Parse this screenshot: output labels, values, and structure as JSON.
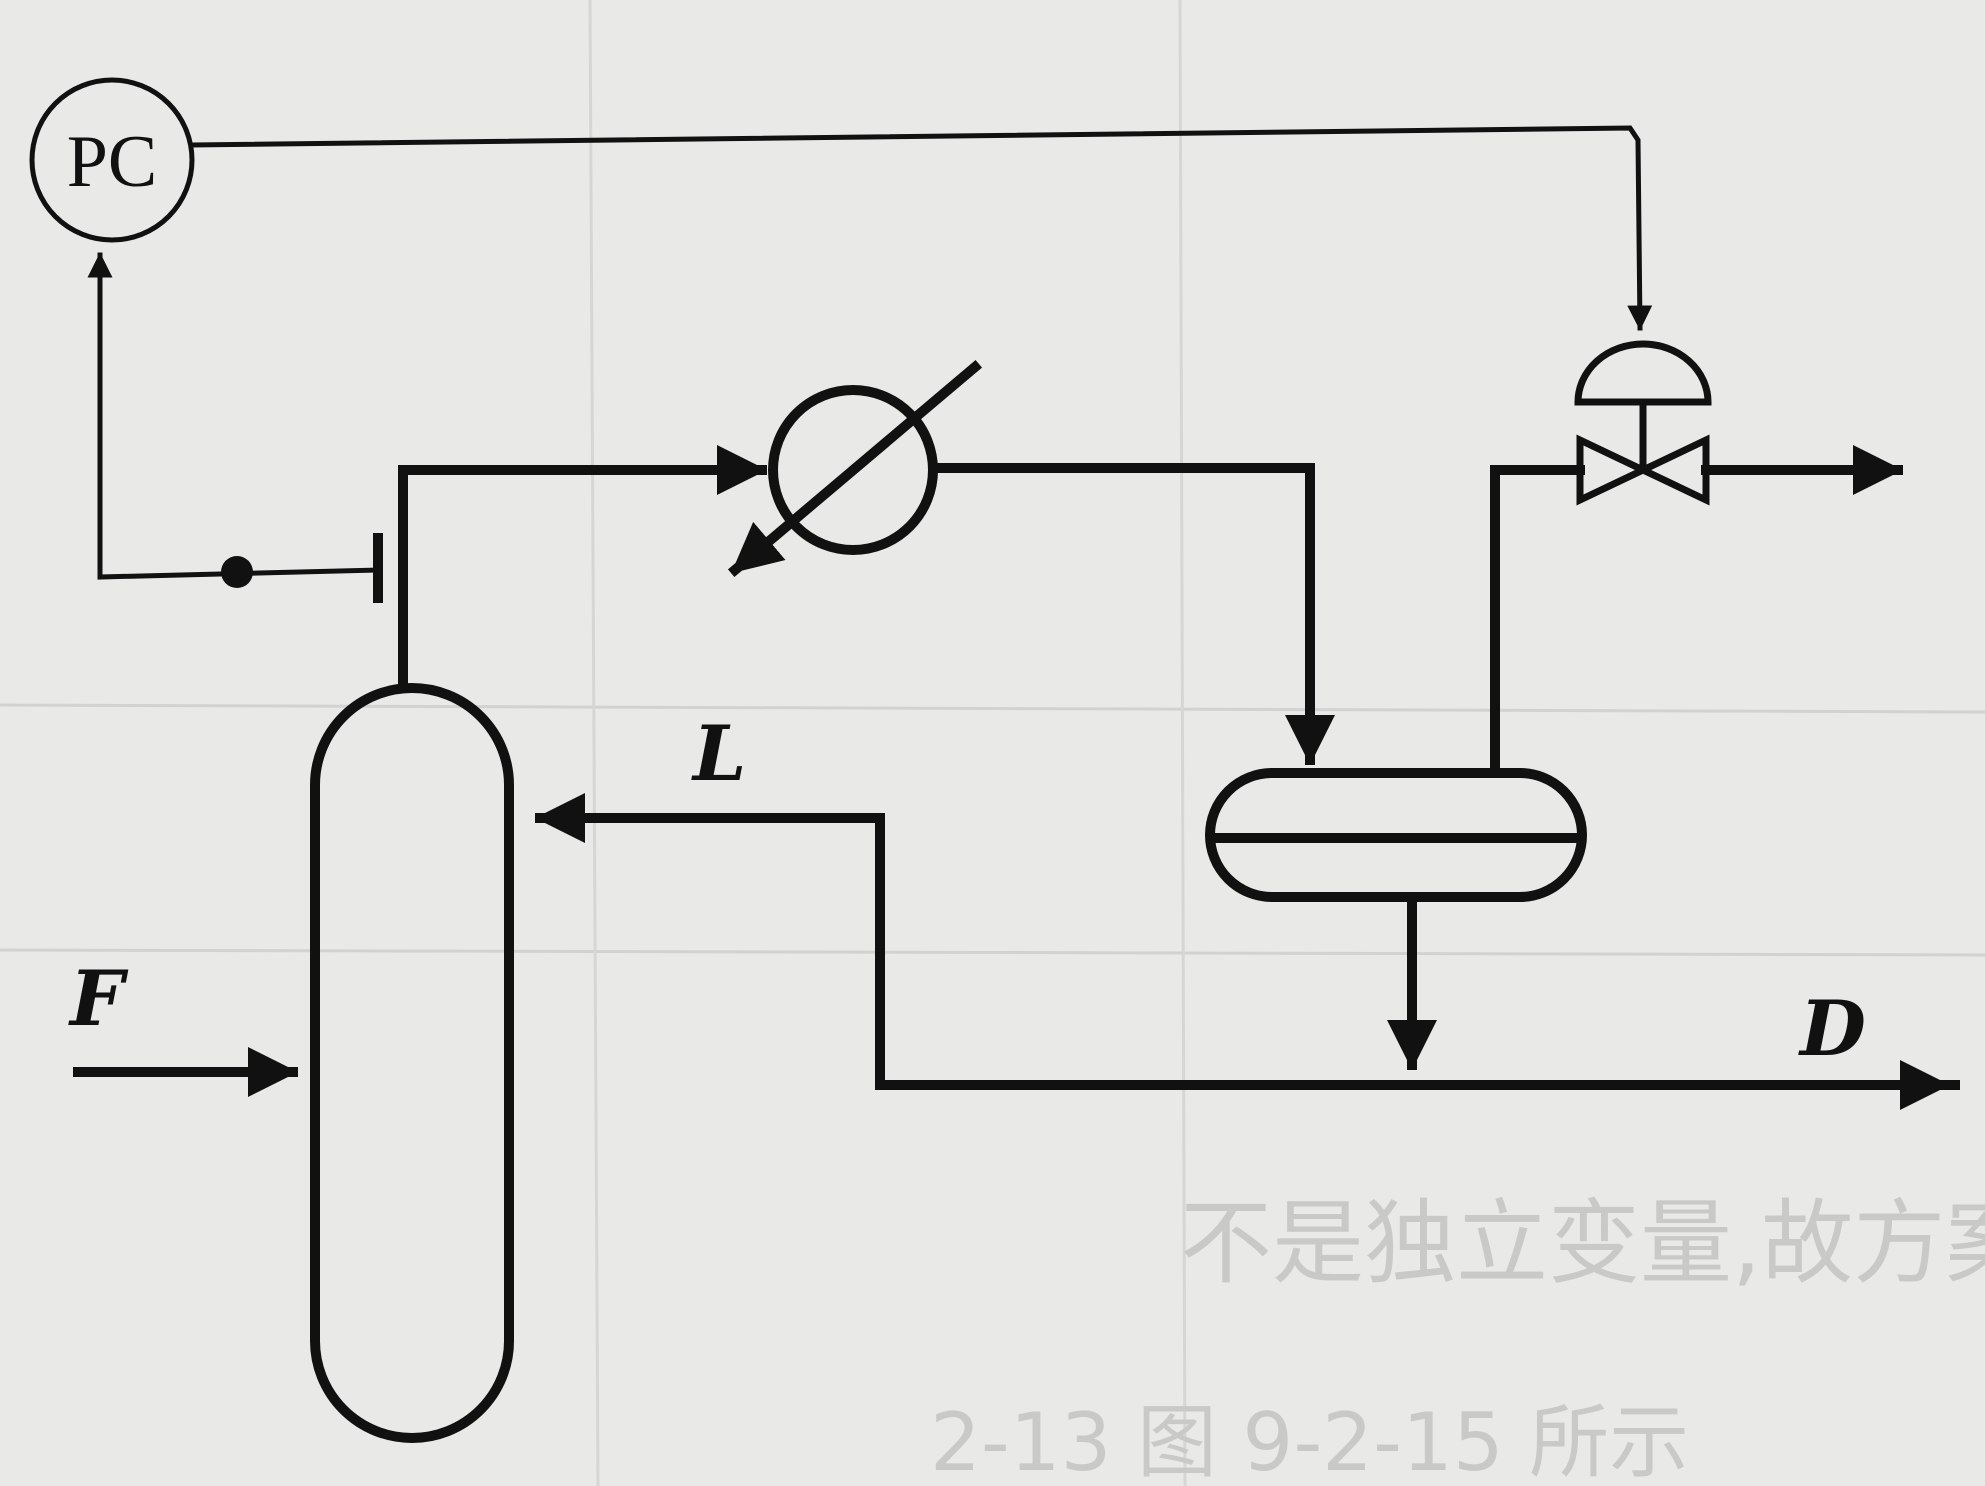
{
  "diagram": {
    "controller": {
      "label": "PC"
    },
    "streams": {
      "reflux": "L",
      "feed": "F",
      "distillate": "D"
    },
    "background_text": {
      "line": "不是独立变量,故方案无法采用",
      "caption": "2-13 图 9-2-15 所示"
    }
  }
}
